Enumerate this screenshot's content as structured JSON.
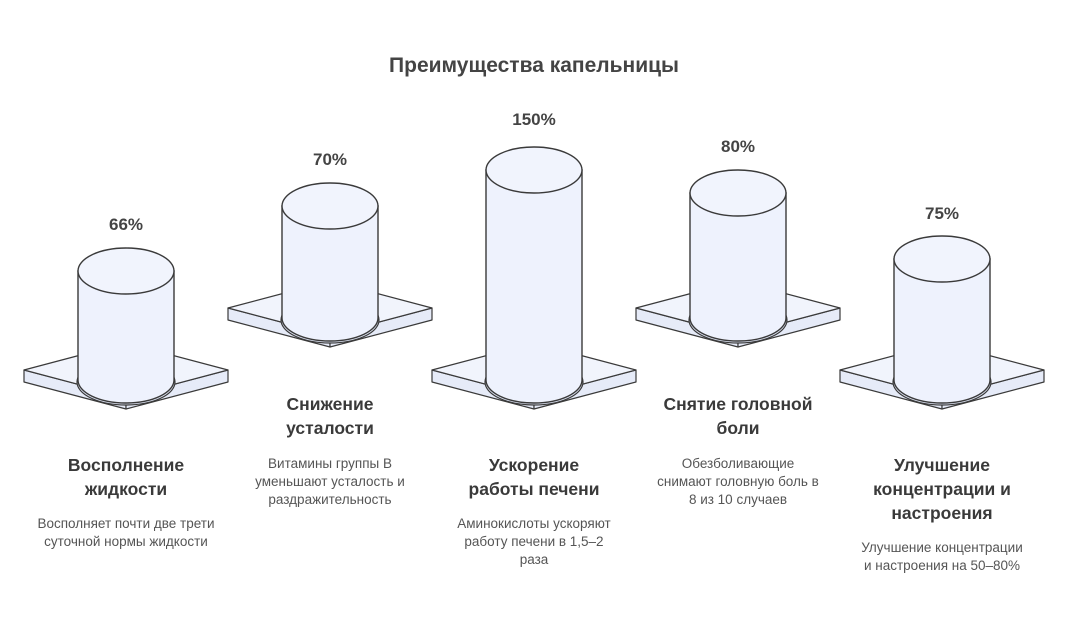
{
  "title": "Преимущества капельницы",
  "colors": {
    "cylinder_fill": "#eef2fd",
    "stroke": "#3a3a3a",
    "text": "#444444"
  },
  "items": [
    {
      "value": "66%",
      "heading": "Восполнение жидкости",
      "description": "Восполняет почти две трети суточной нормы жидкости"
    },
    {
      "value": "70%",
      "heading": "Снижение усталости",
      "description": "Витамины группы B уменьшают усталость и раздражительность"
    },
    {
      "value": "150%",
      "heading": "Ускорение работы печени",
      "description": "Аминокислоты ускоряют работу печени в 1,5–2 раза"
    },
    {
      "value": "80%",
      "heading": "Снятие головной боли",
      "description": "Обезболивающие снимают головную боль в 8 из 10 случаев"
    },
    {
      "value": "75%",
      "heading": "Улучшение концентрации и настроения",
      "description": "Улучшение концентрации и настроения на 50–80%"
    }
  ]
}
